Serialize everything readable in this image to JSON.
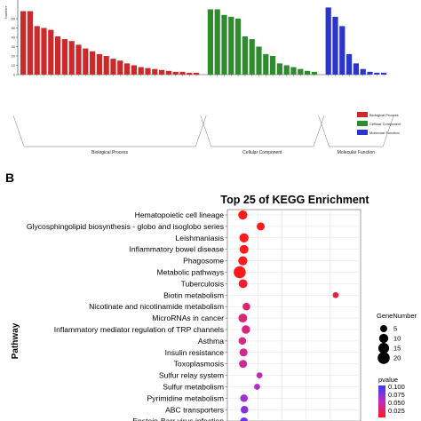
{
  "panel_labels": {
    "b": "B"
  },
  "chart_data": [
    {
      "type": "bar",
      "ylabel": "Number",
      "ylim": [
        0,
        80
      ],
      "yticks": [
        0,
        10,
        20,
        30,
        40,
        50,
        60
      ],
      "groups": [
        {
          "name": "Biological Process",
          "color": "#cc2a2a",
          "values": [
            68,
            68,
            52,
            50,
            48,
            41,
            38,
            36,
            32,
            28,
            25,
            22,
            20,
            17,
            15,
            12,
            10,
            8,
            7,
            6,
            5,
            4,
            3,
            3,
            2,
            2
          ]
        },
        {
          "name": "Cellular Component",
          "color": "#2e8b2e",
          "values": [
            70,
            70,
            64,
            62,
            60,
            41,
            38,
            30,
            22,
            20,
            12,
            10,
            8,
            6,
            4,
            3
          ]
        },
        {
          "name": "Molecular Function",
          "color": "#2a35cc",
          "values": [
            72,
            62,
            52,
            22,
            12,
            6,
            3,
            2,
            2
          ]
        }
      ],
      "legend": [
        "Biological Process",
        "Cellular Component",
        "Molecular Function"
      ],
      "legend_position": "right"
    },
    {
      "type": "scatter",
      "title": "Top 25 of KEGG Enrichment",
      "ylabel": "Pathway",
      "xlim": [
        0,
        0.5
      ],
      "categories": [
        "Hematopoietic cell lineage",
        "Glycosphingolipid biosynthesis - globo and isoglobo series",
        "Leishmaniasis",
        "Inflammatory bowel disease",
        "Phagosome",
        "Metabolic pathways",
        "Tuberculosis",
        "Biotin metabolism",
        "Nicotinate and nicotinamide metabolism",
        "MicroRNAs in cancer",
        "Inflammatory mediator regulation of TRP channels",
        "Asthma",
        "Insulin resistance",
        "Toxoplasmosis",
        "Sulfur relay system",
        "Sulfur metabolism",
        "Pyrimidine metabolism",
        "ABC transporters",
        "Epstein-Barr virus infection"
      ],
      "x": [
        0.035,
        0.11,
        0.04,
        0.04,
        0.035,
        0.022,
        0.036,
        0.425,
        0.05,
        0.035,
        0.048,
        0.033,
        0.038,
        0.036,
        0.105,
        0.095,
        0.04,
        0.042,
        0.04
      ],
      "gene_number": [
        10,
        7,
        10,
        9,
        10,
        20,
        9,
        3,
        6,
        9,
        8,
        6,
        7,
        7,
        3,
        3,
        6,
        6,
        6
      ],
      "pvalue": [
        0.0,
        0.001,
        0.0,
        0.001,
        0.002,
        0.0,
        0.006,
        0.012,
        0.025,
        0.028,
        0.03,
        0.032,
        0.035,
        0.038,
        0.045,
        0.055,
        0.06,
        0.07,
        0.08
      ],
      "legend_gene": {
        "title": "GeneNumber",
        "values": [
          5,
          10,
          15,
          20
        ]
      },
      "legend_pvalue": {
        "title": "pvalue",
        "ticks": [
          0.1,
          0.075,
          0.05,
          0.025
        ],
        "tick_labels": [
          "0.100",
          "0.075",
          "0.050",
          "0.025"
        ]
      },
      "colors": {
        "high_p": "#3a3af0",
        "mid_p": "#c02bc8",
        "low_p": "#ff1a1a"
      },
      "legend_position": "right",
      "grid": true
    }
  ]
}
